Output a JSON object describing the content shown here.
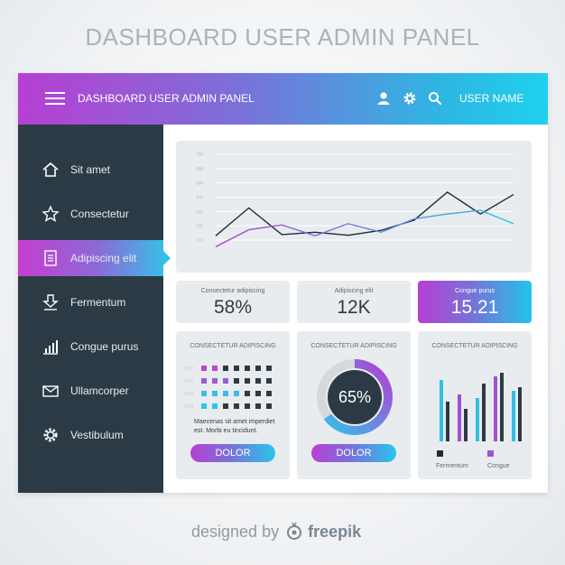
{
  "page_title": "DASHBOARD USER ADMIN PANEL",
  "topbar": {
    "title": "DASHBOARD USER ADMIN PANEL",
    "username": "USER NAME",
    "icons": [
      "menu-icon",
      "user-icon",
      "gear-icon",
      "search-icon"
    ]
  },
  "sidebar": {
    "items": [
      {
        "label": "Sit amet",
        "icon": "home-icon"
      },
      {
        "label": "Consectetur",
        "icon": "star-icon"
      },
      {
        "label": "Adipiscing elit",
        "icon": "document-icon",
        "active": true
      },
      {
        "label": "Fermentum",
        "icon": "download-icon"
      },
      {
        "label": "Congue purus",
        "icon": "bar-chart-icon"
      },
      {
        "label": "Ullamcorper",
        "icon": "mail-icon"
      },
      {
        "label": "Vestibulum",
        "icon": "gear-icon"
      }
    ]
  },
  "line_chart": {
    "chart_data": {
      "type": "line",
      "ylabels": [
        "700",
        "600",
        "500",
        "400",
        "300",
        "200",
        "100"
      ],
      "ylim": [
        100,
        700
      ],
      "series": [
        {
          "color": "#1e2a33",
          "values": [
            120,
            350,
            130,
            150,
            125,
            165,
            250,
            480,
            300,
            460
          ]
        },
        {
          "color": "#b43fd3",
          "values": [
            30,
            170,
            210,
            120,
            220,
            150,
            260,
            300,
            330,
            220
          ]
        }
      ]
    }
  },
  "stats": [
    {
      "label": "Consectetur adipiscing",
      "value": "58%"
    },
    {
      "label": "Adipiscing elit",
      "value": "12K"
    },
    {
      "label": "Congue purus",
      "value": "15.21"
    }
  ],
  "cards": {
    "dots": {
      "label": "CONSECTETUR ADIPISCING",
      "row_labels": [
        "2017",
        "2016",
        "2015",
        "2014"
      ],
      "desc_line1": "Maecenas sit amet imperdiet",
      "desc_line2": "est. Morbi eu tincidunt.",
      "button": "DOLOR"
    },
    "gauge": {
      "label": "CONSECTETUR ADIPISCING",
      "value_text": "65%",
      "value": 65,
      "button": "DOLOR"
    },
    "bars": {
      "label": "CONSECTETUR ADIPISCING",
      "legend": [
        "Fermentum",
        "Congue"
      ],
      "chart_data": {
        "type": "bar",
        "series": [
          {
            "name": "Fermentum",
            "values": [
              85,
              65,
              60,
              90,
              70
            ]
          },
          {
            "name": "Congue",
            "values": [
              55,
              45,
              80,
              95,
              75
            ]
          }
        ]
      }
    }
  },
  "footer": {
    "prefix": "designed by",
    "brand": "freepik"
  },
  "colors": {
    "accent_purple": "#b73fd3",
    "accent_cyan": "#1fd0ee",
    "sidebar_bg": "#2c3a45",
    "card_bg": "#e8ecef"
  }
}
